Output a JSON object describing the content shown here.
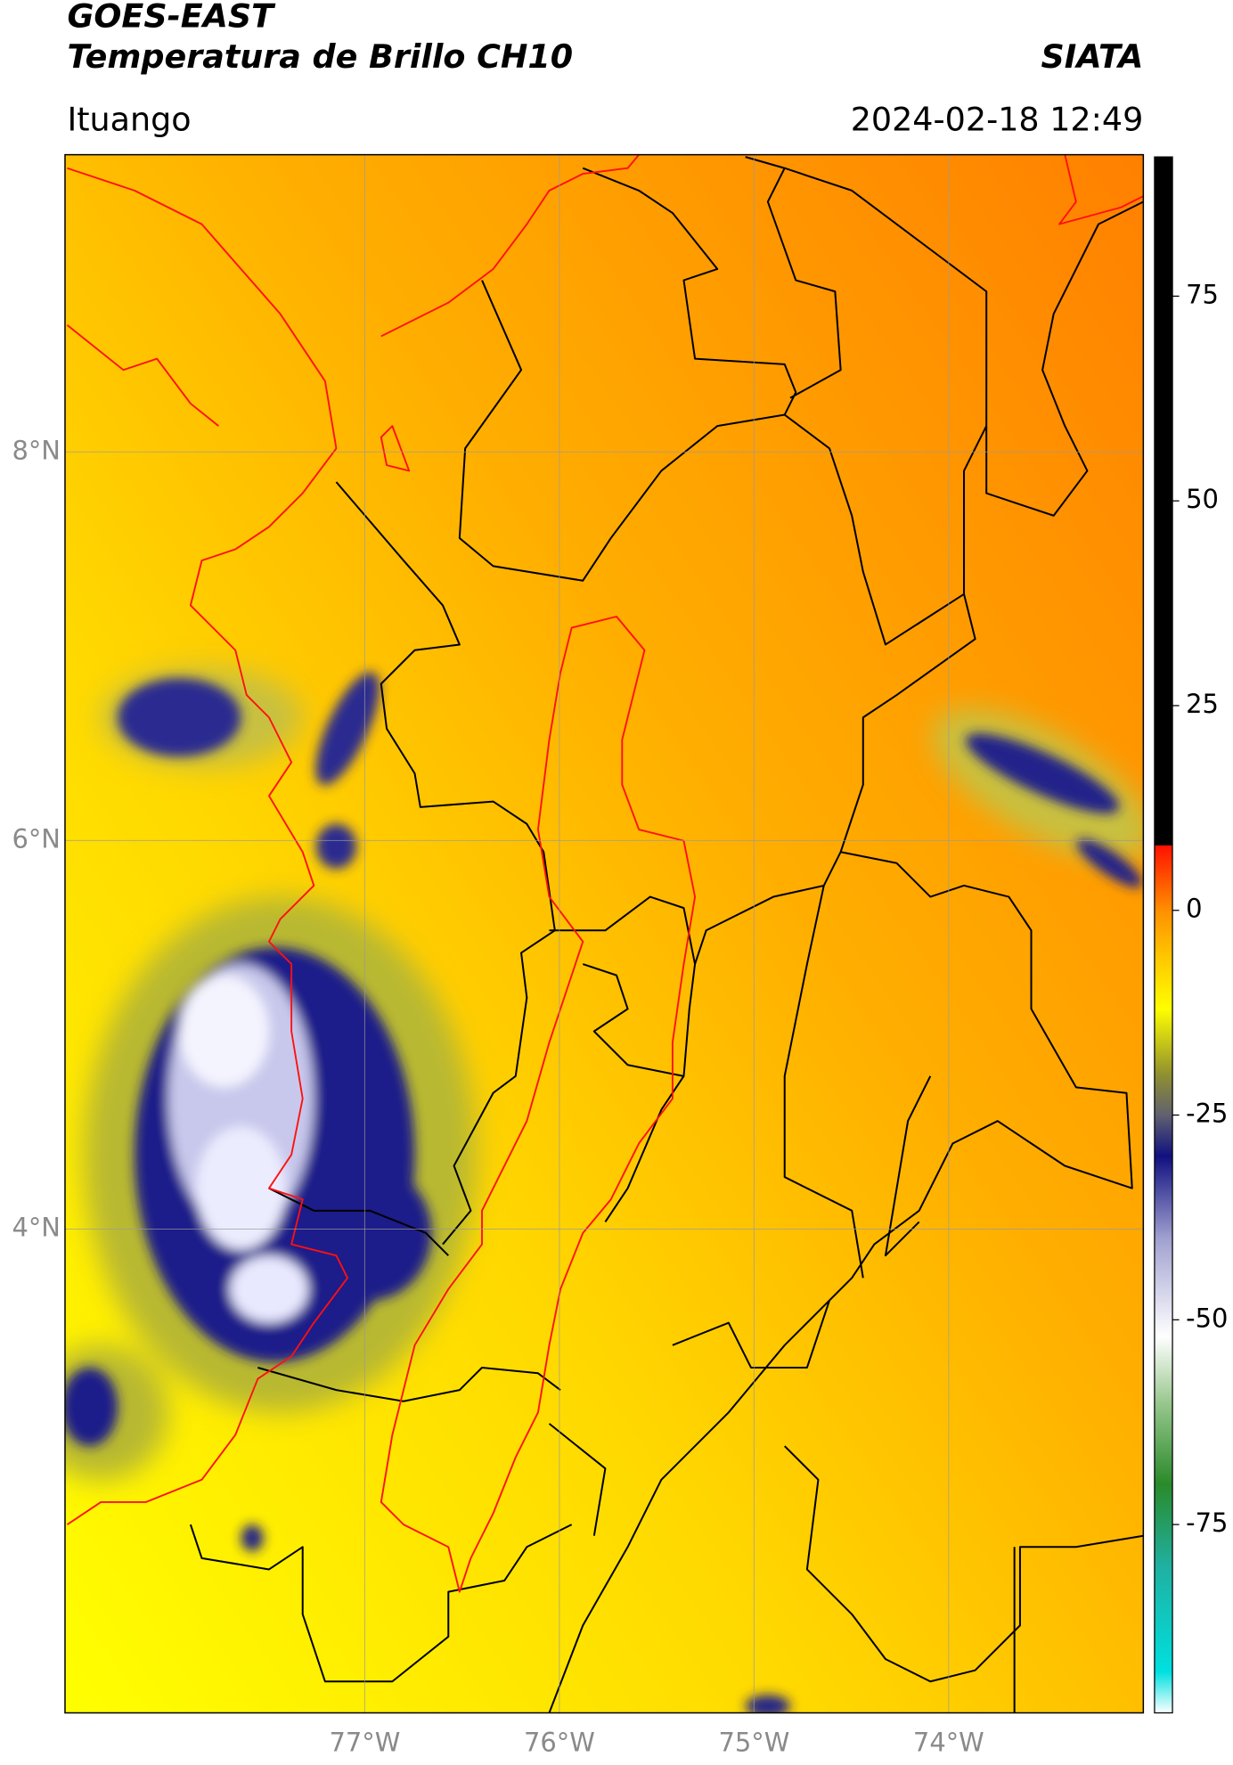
{
  "header": {
    "title": "GOES-EAST",
    "subtitle": "Temperatura de Brillo CH10",
    "source": "SIATA",
    "location": "Ituango",
    "datetime": "2024-02-18 12:49"
  },
  "map": {
    "xlim": [
      -78.54,
      -73.0
    ],
    "ylim": [
      1.51,
      9.53
    ],
    "xticks": [
      {
        "value": -77,
        "label": "77°W"
      },
      {
        "value": -76,
        "label": "76°W"
      },
      {
        "value": -75,
        "label": "75°W"
      },
      {
        "value": -74,
        "label": "74°W"
      }
    ],
    "yticks": [
      {
        "value": 8,
        "label": "8°N"
      },
      {
        "value": 6,
        "label": "6°N"
      },
      {
        "value": 4,
        "label": "4°N"
      }
    ],
    "grid": true
  },
  "colorbar": {
    "clim": [
      -98,
      92
    ],
    "ticks": [
      75,
      50,
      25,
      0,
      -25,
      -50,
      -75
    ],
    "stops": [
      {
        "value": -98,
        "color": "#ffffff"
      },
      {
        "value": -93,
        "color": "#00e0e0"
      },
      {
        "value": -80,
        "color": "#20b0a0"
      },
      {
        "value": -70,
        "color": "#2a8a2a"
      },
      {
        "value": -60,
        "color": "#9ac890"
      },
      {
        "value": -52,
        "color": "#ffffff"
      },
      {
        "value": -40,
        "color": "#a0a0d0"
      },
      {
        "value": -30,
        "color": "#101080"
      },
      {
        "value": -25,
        "color": "#606070"
      },
      {
        "value": -20,
        "color": "#909030"
      },
      {
        "value": -12,
        "color": "#ffff00"
      },
      {
        "value": -5,
        "color": "#ffc000"
      },
      {
        "value": 0,
        "color": "#ff9000"
      },
      {
        "value": 8,
        "color": "#ff1000"
      },
      {
        "value": 8,
        "color": "#000000"
      },
      {
        "value": 92,
        "color": "#000000"
      }
    ]
  }
}
